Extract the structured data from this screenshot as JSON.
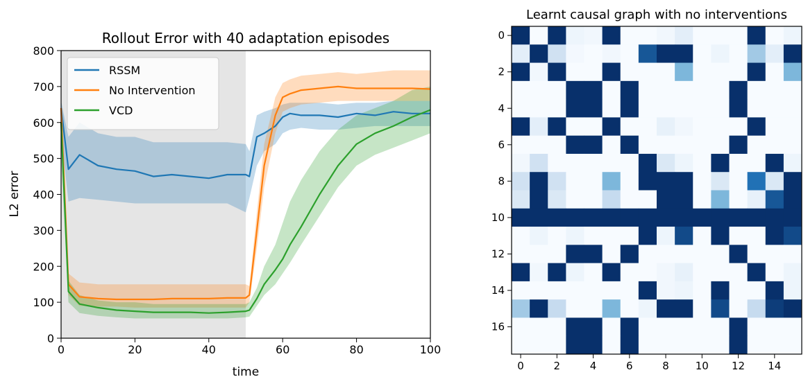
{
  "chart_data": [
    {
      "type": "line",
      "title": "Rollout Error with 40 adaptation episodes",
      "xlabel": "time",
      "ylabel": "L2 error",
      "xlim": [
        0,
        100
      ],
      "ylim": [
        0,
        800
      ],
      "xticks": [
        "0",
        "20",
        "40",
        "60",
        "80",
        "100"
      ],
      "yticks": [
        "0",
        "100",
        "200",
        "300",
        "400",
        "500",
        "600",
        "700",
        "800"
      ],
      "grid": false,
      "legend_position": "top-left",
      "shaded_region": {
        "x": [
          0,
          50
        ],
        "color": "#e5e5e5"
      },
      "x": [
        0,
        2,
        5,
        10,
        15,
        20,
        25,
        30,
        35,
        40,
        45,
        50,
        51,
        53,
        55,
        58,
        60,
        62,
        65,
        70,
        75,
        80,
        85,
        90,
        95,
        100
      ],
      "series": [
        {
          "name": "RSSM",
          "color": "#1f77b4",
          "values": [
            640,
            470,
            510,
            480,
            470,
            465,
            450,
            455,
            450,
            445,
            455,
            455,
            450,
            560,
            570,
            590,
            615,
            625,
            620,
            620,
            615,
            625,
            620,
            630,
            625,
            625
          ],
          "band_low": [
            565,
            380,
            390,
            385,
            380,
            375,
            375,
            375,
            375,
            375,
            375,
            350,
            390,
            480,
            520,
            540,
            570,
            580,
            585,
            580,
            580,
            585,
            590,
            590,
            590,
            590
          ],
          "band_high": [
            660,
            560,
            600,
            570,
            560,
            560,
            545,
            545,
            545,
            545,
            545,
            540,
            520,
            620,
            630,
            640,
            650,
            655,
            655,
            655,
            650,
            655,
            655,
            660,
            660,
            660
          ]
        },
        {
          "name": "No Intervention",
          "color": "#ff7f0e",
          "values": [
            640,
            150,
            115,
            110,
            108,
            108,
            108,
            110,
            110,
            110,
            112,
            112,
            120,
            300,
            480,
            620,
            670,
            680,
            690,
            695,
            700,
            695,
            695,
            695,
            695,
            693
          ],
          "band_low": [
            560,
            120,
            90,
            88,
            88,
            85,
            85,
            85,
            85,
            85,
            85,
            85,
            100,
            250,
            420,
            570,
            630,
            640,
            650,
            655,
            660,
            660,
            660,
            660,
            660,
            660
          ],
          "band_high": [
            660,
            180,
            155,
            150,
            150,
            150,
            150,
            150,
            150,
            150,
            150,
            150,
            145,
            350,
            540,
            670,
            710,
            720,
            730,
            735,
            740,
            735,
            740,
            745,
            745,
            745
          ]
        },
        {
          "name": "VCD",
          "color": "#2ca02c",
          "values": [
            600,
            130,
            95,
            85,
            78,
            75,
            72,
            72,
            72,
            70,
            72,
            75,
            78,
            110,
            150,
            190,
            220,
            260,
            310,
            400,
            480,
            540,
            570,
            590,
            615,
            635
          ],
          "band_low": [
            500,
            100,
            70,
            62,
            58,
            55,
            55,
            55,
            55,
            55,
            55,
            58,
            60,
            90,
            120,
            150,
            180,
            210,
            260,
            340,
            420,
            480,
            510,
            530,
            550,
            570
          ],
          "band_high": [
            620,
            160,
            120,
            105,
            100,
            100,
            95,
            95,
            95,
            95,
            95,
            95,
            100,
            140,
            200,
            260,
            320,
            380,
            440,
            520,
            580,
            620,
            640,
            660,
            690,
            700
          ]
        }
      ]
    },
    {
      "type": "heatmap",
      "title": "Learnt causal graph with no interventions",
      "xticks": [
        "0",
        "2",
        "4",
        "6",
        "8",
        "10",
        "12",
        "14"
      ],
      "yticks": [
        "0",
        "2",
        "4",
        "6",
        "8",
        "10",
        "12",
        "14",
        "16"
      ],
      "colormap": "Blues",
      "rows": 18,
      "cols": 16,
      "values": [
        [
          1,
          0,
          1,
          0.05,
          0.03,
          1,
          0,
          0,
          0.03,
          0.1,
          0,
          0,
          0,
          1,
          0,
          0.05
        ],
        [
          0.1,
          1,
          0.2,
          0.02,
          0,
          0.03,
          0,
          0.85,
          1,
          1,
          0,
          0.05,
          0,
          0.35,
          0.1,
          1
        ],
        [
          1,
          0.03,
          1,
          0,
          0,
          1,
          0,
          0,
          0,
          0.45,
          0,
          0,
          0,
          1,
          0,
          0.45
        ],
        [
          0,
          0,
          0,
          1,
          1,
          0,
          1,
          0,
          0,
          0,
          0,
          0,
          1,
          0,
          0,
          0
        ],
        [
          0,
          0,
          0,
          1,
          1,
          0,
          1,
          0,
          0,
          0,
          0,
          0,
          1,
          0,
          0,
          0
        ],
        [
          1,
          0.1,
          1,
          0,
          0,
          1,
          0,
          0,
          0.08,
          0.03,
          0,
          0,
          0,
          1,
          0,
          0
        ],
        [
          0,
          0,
          0,
          1,
          1,
          0,
          1,
          0,
          0,
          0,
          0,
          0,
          1,
          0,
          0,
          0
        ],
        [
          0.03,
          0.2,
          0,
          0,
          0,
          0,
          0,
          1,
          0.15,
          0.05,
          0,
          1,
          0,
          0,
          1,
          0.05
        ],
        [
          0.2,
          1,
          0.2,
          0,
          0,
          0.45,
          0,
          1,
          1,
          1,
          0,
          0.15,
          0,
          0.75,
          0.15,
          1
        ],
        [
          0.15,
          1,
          0.15,
          0,
          0,
          0.25,
          0,
          0,
          1,
          1,
          0,
          0.45,
          0,
          0.08,
          0.85,
          1
        ],
        [
          1,
          1,
          1,
          1,
          1,
          1,
          1,
          1,
          1,
          1,
          1,
          1,
          1,
          1,
          1,
          1
        ],
        [
          0,
          0.05,
          0,
          0.05,
          0,
          0,
          0,
          1,
          0.05,
          0.9,
          0,
          1,
          0,
          0,
          1,
          0.9
        ],
        [
          0,
          0,
          0,
          1,
          1,
          0,
          1,
          0,
          0,
          0,
          0,
          0,
          1,
          0,
          0,
          0
        ],
        [
          1,
          0.03,
          1,
          0.05,
          0,
          1,
          0,
          0,
          0.03,
          0.08,
          0,
          0,
          0,
          1,
          0,
          0.05
        ],
        [
          0,
          0,
          0,
          0,
          0,
          0,
          0,
          1,
          0.03,
          0.05,
          0,
          1,
          0,
          0,
          1,
          0.05
        ],
        [
          0.35,
          1,
          0.25,
          0,
          0,
          0.45,
          0,
          0.05,
          1,
          1,
          0,
          0.9,
          0,
          0.25,
          0.95,
          1
        ],
        [
          0,
          0,
          0,
          1,
          1,
          0,
          1,
          0,
          0,
          0,
          0,
          0,
          1,
          0,
          0,
          0
        ],
        [
          0,
          0,
          0,
          1,
          1,
          0,
          1,
          0,
          0,
          0,
          0,
          0,
          1,
          0,
          0,
          0
        ]
      ]
    }
  ]
}
